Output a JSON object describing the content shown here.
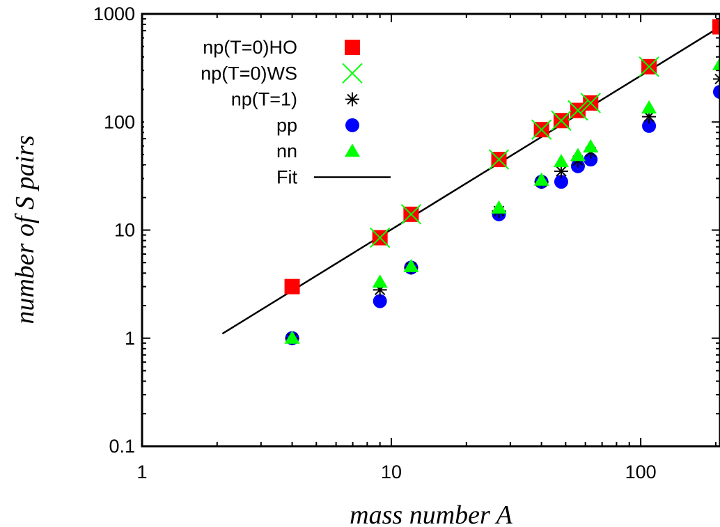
{
  "chart_data": {
    "type": "scatter",
    "xlabel": "mass number A",
    "ylabel": "number of S pairs",
    "xscale": "log",
    "yscale": "log",
    "xlim": [
      1,
      208
    ],
    "ylim": [
      0.1,
      1000
    ],
    "xticks": [
      {
        "value": 1,
        "label": "1"
      },
      {
        "value": 10,
        "label": "10"
      },
      {
        "value": 100,
        "label": "100"
      }
    ],
    "yticks": [
      {
        "value": 0.1,
        "label": "0.1"
      },
      {
        "value": 1,
        "label": "1"
      },
      {
        "value": 10,
        "label": "10"
      },
      {
        "value": 100,
        "label": "100"
      },
      {
        "value": 1000,
        "label": "1000"
      }
    ],
    "legend_position": "top-left",
    "grid": false,
    "series": [
      {
        "name": "np(T=0)HO",
        "marker": "square",
        "color": "#ff0000",
        "points": [
          [
            4,
            3.0
          ],
          [
            9,
            8.5
          ],
          [
            12,
            14
          ],
          [
            27,
            45
          ],
          [
            40,
            85
          ],
          [
            48,
            103
          ],
          [
            56,
            128
          ],
          [
            63,
            150
          ],
          [
            108,
            325
          ],
          [
            208,
            760
          ]
        ]
      },
      {
        "name": "np(T=0)WS",
        "marker": "cross",
        "color": "#00ff00",
        "points": [
          [
            9,
            8.5
          ],
          [
            12,
            14
          ],
          [
            27,
            45
          ],
          [
            40,
            85
          ],
          [
            48,
            103
          ],
          [
            56,
            128
          ],
          [
            63,
            150
          ],
          [
            108,
            325
          ]
        ]
      },
      {
        "name": "np(T=1)",
        "marker": "star",
        "color": "#000000",
        "points": [
          [
            4,
            1.0
          ],
          [
            9,
            2.8
          ],
          [
            12,
            4.5
          ],
          [
            27,
            15
          ],
          [
            40,
            28
          ],
          [
            48,
            35
          ],
          [
            56,
            44
          ],
          [
            63,
            53
          ],
          [
            108,
            112
          ],
          [
            208,
            250
          ]
        ]
      },
      {
        "name": "pp",
        "marker": "circle",
        "color": "#0000ff",
        "points": [
          [
            4,
            1.0
          ],
          [
            9,
            2.2
          ],
          [
            12,
            4.5
          ],
          [
            27,
            14
          ],
          [
            40,
            28
          ],
          [
            48,
            28
          ],
          [
            56,
            39
          ],
          [
            63,
            45
          ],
          [
            108,
            92
          ],
          [
            208,
            190
          ]
        ]
      },
      {
        "name": "nn",
        "marker": "triangle",
        "color": "#00ff00",
        "points": [
          [
            4,
            1.0
          ],
          [
            9,
            3.3
          ],
          [
            12,
            4.6
          ],
          [
            27,
            16
          ],
          [
            40,
            29
          ],
          [
            48,
            43
          ],
          [
            56,
            49
          ],
          [
            63,
            59
          ],
          [
            108,
            135
          ],
          [
            208,
            340
          ]
        ]
      },
      {
        "name": "Fit",
        "marker": "line",
        "color": "#000000",
        "points": [
          [
            2.1,
            1.1
          ],
          [
            208,
            760
          ]
        ]
      }
    ]
  }
}
